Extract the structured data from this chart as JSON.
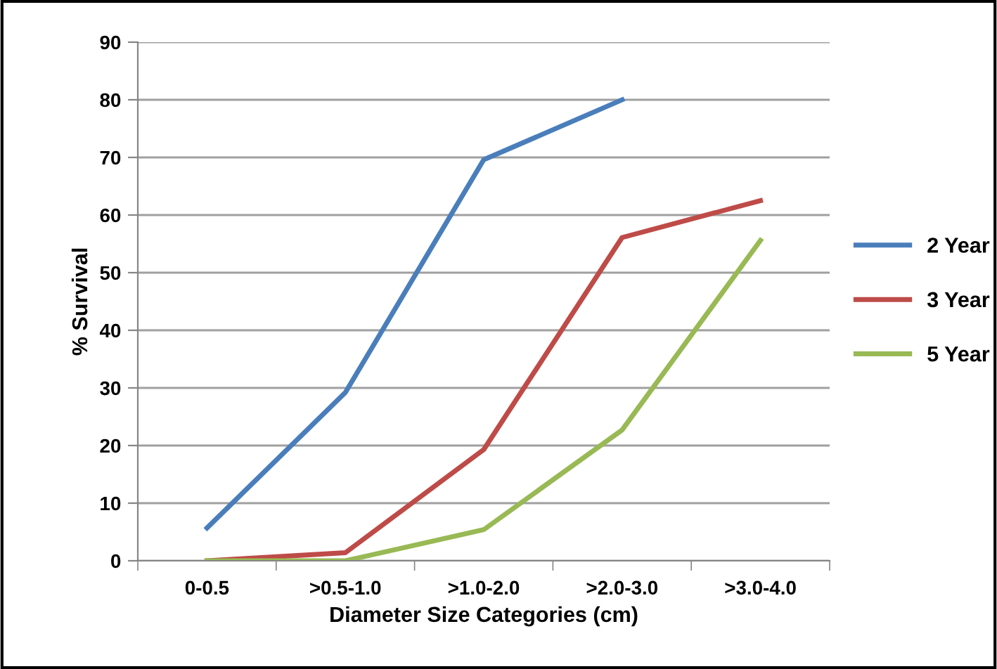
{
  "chart_data": {
    "type": "line",
    "xlabel": "Diameter Size Categories (cm)",
    "ylabel": "% Survival",
    "categories": [
      "0-0.5",
      ">0.5-1.0",
      ">1.0-2.0",
      ">2.0-3.0",
      ">3.0-4.0"
    ],
    "series": [
      {
        "name": "2 Year",
        "color": "#4a7ebb",
        "values": [
          5.7,
          29.2,
          69.6,
          80,
          null
        ]
      },
      {
        "name": "3 Year",
        "color": "#be4b48",
        "values": [
          0,
          1.4,
          19.3,
          56.1,
          62.5
        ]
      },
      {
        "name": "5 Year",
        "color": "#98b954",
        "values": [
          0,
          0,
          5.4,
          22.7,
          55.6
        ]
      }
    ],
    "ylim": [
      0,
      90
    ],
    "yticks": [
      0,
      10,
      20,
      30,
      40,
      50,
      60,
      70,
      80,
      90
    ],
    "grid": "y",
    "legend": "right",
    "marker": "none",
    "line_style": "solid"
  }
}
